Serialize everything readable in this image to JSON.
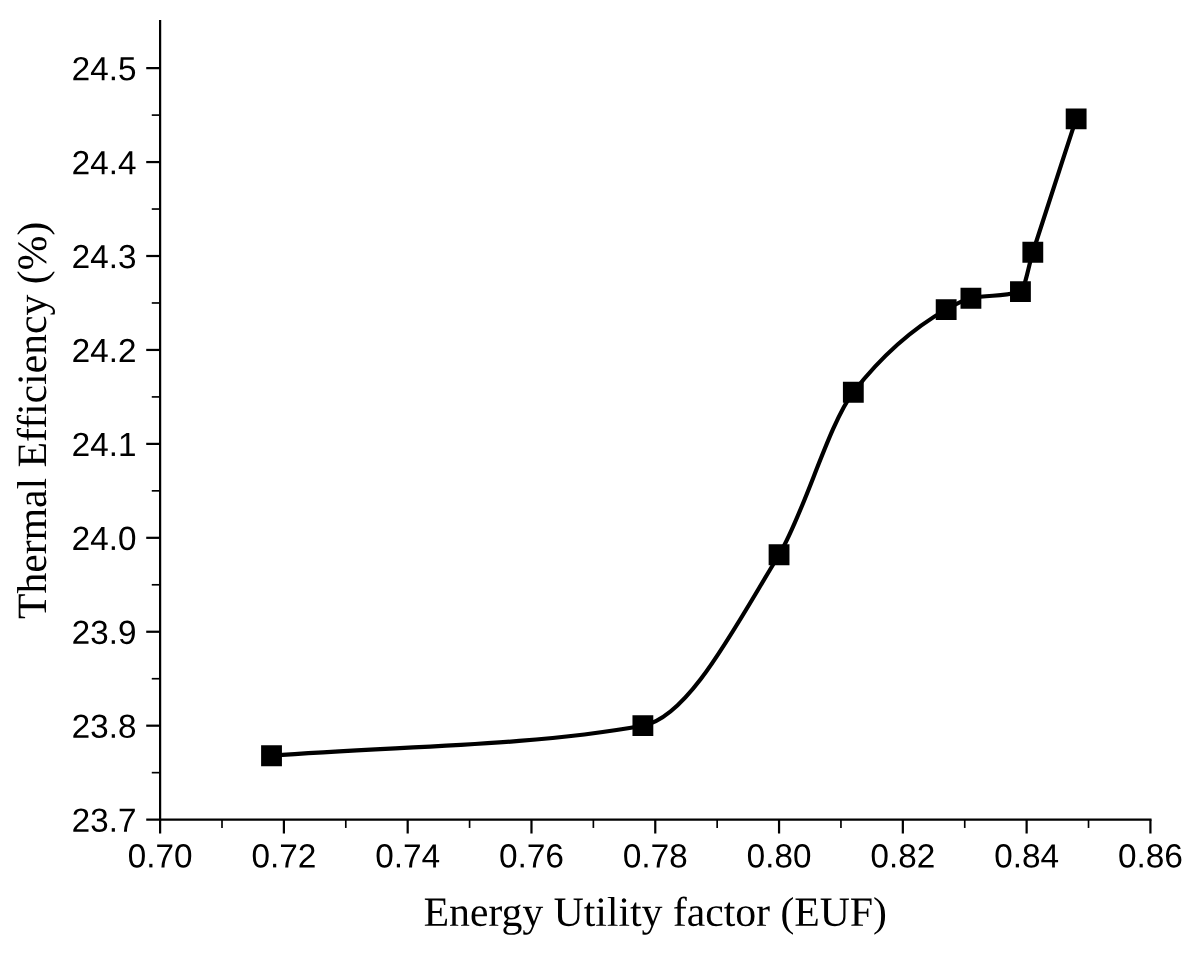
{
  "chart_data": {
    "type": "line",
    "xlabel": "Energy Utility factor (EUF)",
    "ylabel": "Thermal Efficiency (%)",
    "x": [
      0.718,
      0.778,
      0.8,
      0.812,
      0.827,
      0.831,
      0.839,
      0.841,
      0.848
    ],
    "series": [
      {
        "color": "#000000",
        "values": [
          23.768,
          23.8,
          23.982,
          24.155,
          24.243,
          24.255,
          24.262,
          24.304,
          24.446
        ]
      }
    ],
    "marker": "square",
    "line_style": "solid",
    "grid": false,
    "xlim": [
      0.7,
      0.86
    ],
    "xticks": [
      {
        "value": 0.7,
        "label": "0.70"
      },
      {
        "value": 0.72,
        "label": "0.72"
      },
      {
        "value": 0.74,
        "label": "0.74"
      },
      {
        "value": 0.76,
        "label": "0.76"
      },
      {
        "value": 0.78,
        "label": "0.78"
      },
      {
        "value": 0.8,
        "label": "0.80"
      },
      {
        "value": 0.82,
        "label": "0.82"
      },
      {
        "value": 0.84,
        "label": "0.84"
      },
      {
        "value": 0.86,
        "label": "0.86"
      }
    ],
    "ylim": [
      23.7,
      24.55
    ],
    "yticks": [
      23.7,
      23.8,
      23.9,
      {
        "value": 24.0,
        "label": "24.0"
      },
      24.1,
      24.2,
      24.3,
      24.4,
      24.5
    ]
  }
}
